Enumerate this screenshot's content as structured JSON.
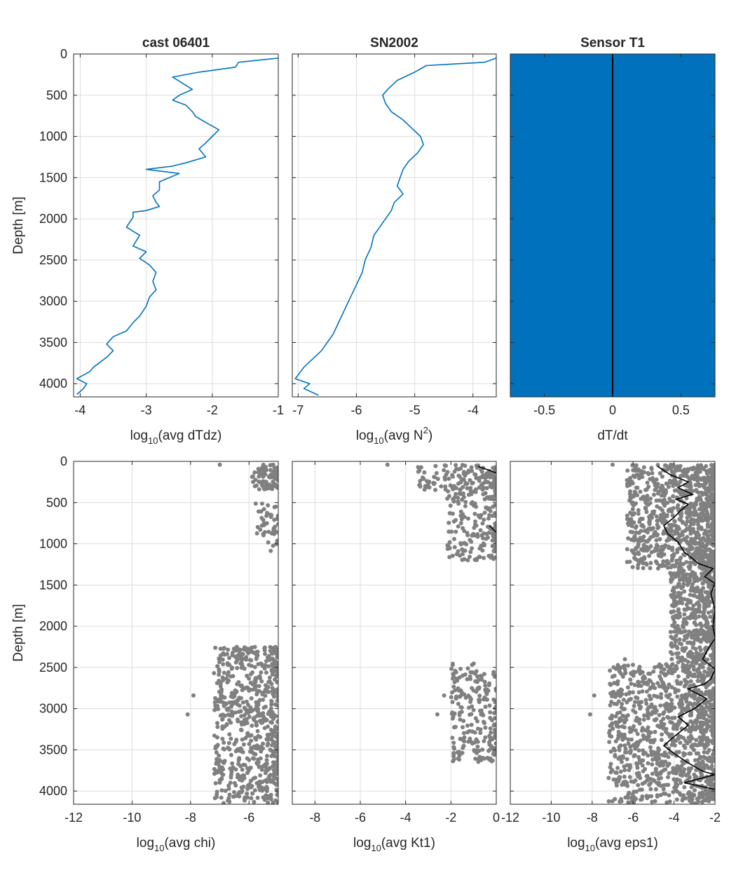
{
  "figure": {
    "panels": [
      {
        "id": "p1",
        "title": "cast 06401",
        "xlabel": {
          "pre": "log",
          "sub": "10",
          "post": "(avg dTdz)"
        },
        "ylabel": "Depth [m]",
        "xticks": [
          "-4",
          "-3",
          "-2",
          "-1"
        ],
        "yticks": [
          "0",
          "500",
          "1000",
          "1500",
          "2000",
          "2500",
          "3000",
          "3500",
          "4000"
        ]
      },
      {
        "id": "p2",
        "title": "SN2002",
        "xlabel": {
          "pre": "log",
          "sub": "10",
          "post": "(avg N",
          "sup": "2",
          "post2": ")"
        },
        "xticks": [
          "-7",
          "-6",
          "-5",
          "-4"
        ]
      },
      {
        "id": "p3",
        "title": "Sensor T1",
        "xlabel": {
          "pre": "dT/dt"
        },
        "xticks": [
          "-0.5",
          "0",
          "0.5"
        ]
      },
      {
        "id": "p4",
        "xlabel": {
          "pre": "log",
          "sub": "10",
          "post": "(avg chi)"
        },
        "ylabel": "Depth [m]",
        "xticks": [
          "-12",
          "-10",
          "-8",
          "-6"
        ],
        "yticks": [
          "0",
          "500",
          "1000",
          "1500",
          "2000",
          "2500",
          "3000",
          "3500",
          "4000"
        ]
      },
      {
        "id": "p5",
        "xlabel": {
          "pre": "log",
          "sub": "10",
          "post": "(avg Kt1)"
        },
        "xticks": [
          "-8",
          "-6",
          "-4",
          "-2",
          "0"
        ]
      },
      {
        "id": "p6",
        "xlabel": {
          "pre": "log",
          "sub": "10",
          "post": "(avg eps1)"
        },
        "xticks": [
          "-12",
          "-10",
          "-8",
          "-6",
          "-4",
          "-2"
        ]
      }
    ]
  },
  "colors": {
    "line_blue": "#0072bd",
    "fill_blue": "#0072bd",
    "scatter_gray": "#808080",
    "median_black": "#000000",
    "grid": "#dcdcdc",
    "axis": "#262626"
  },
  "chart_data": [
    {
      "type": "line",
      "panel": "p1",
      "orientation": "profile (x vs depth)",
      "xlim": [
        -4.1,
        -1.0
      ],
      "ylim": [
        0,
        4160
      ],
      "y_reversed": true,
      "grid": true,
      "series": [
        {
          "x": [
            -1.0,
            -1.6,
            -1.65,
            -2.2,
            -2.6,
            -2.4,
            -2.3,
            -2.5,
            -2.6,
            -2.4,
            -2.3,
            -2.25,
            -2.1,
            -1.9,
            -2.0,
            -2.1,
            -2.2,
            -2.1,
            -2.4,
            -2.6,
            -3.0,
            -2.5,
            -2.8,
            -2.8,
            -2.9,
            -2.85,
            -2.8,
            -3.0,
            -3.2,
            -3.2,
            -3.3,
            -3.1,
            -3.2,
            -3.0,
            -3.1,
            -2.95,
            -2.85,
            -2.9,
            -2.85,
            -2.95,
            -3.0,
            -3.1,
            -3.2,
            -3.3,
            -3.5,
            -3.6,
            -3.5,
            -3.6,
            -3.8,
            -3.85,
            -4.05,
            -3.9,
            -3.95,
            -4.05
          ],
          "y": [
            50,
            100,
            160,
            220,
            280,
            380,
            430,
            500,
            560,
            620,
            700,
            760,
            830,
            920,
            1000,
            1080,
            1150,
            1250,
            1320,
            1360,
            1400,
            1450,
            1550,
            1650,
            1720,
            1800,
            1850,
            1900,
            1920,
            1980,
            2100,
            2200,
            2330,
            2400,
            2480,
            2560,
            2650,
            2760,
            2860,
            2950,
            3060,
            3180,
            3260,
            3360,
            3430,
            3520,
            3600,
            3680,
            3800,
            3850,
            3940,
            4000,
            4060,
            4130
          ]
        }
      ]
    },
    {
      "type": "line",
      "panel": "p2",
      "orientation": "profile (x vs depth)",
      "xlim": [
        -7.1,
        -3.6
      ],
      "ylim": [
        0,
        4160
      ],
      "y_reversed": true,
      "grid": true,
      "series": [
        {
          "x": [
            -3.6,
            -3.8,
            -4.8,
            -5.0,
            -5.3,
            -5.45,
            -5.55,
            -5.5,
            -5.4,
            -5.2,
            -5.05,
            -4.9,
            -4.85,
            -4.95,
            -5.1,
            -5.2,
            -5.25,
            -5.3,
            -5.2,
            -5.35,
            -5.4,
            -5.5,
            -5.6,
            -5.7,
            -5.75,
            -5.85,
            -5.9,
            -6.0,
            -6.1,
            -6.2,
            -6.3,
            -6.4,
            -6.5,
            -6.6,
            -6.75,
            -6.9,
            -7.05,
            -6.8,
            -6.9,
            -6.65
          ],
          "y": [
            50,
            100,
            140,
            220,
            320,
            420,
            500,
            600,
            700,
            800,
            900,
            1000,
            1100,
            1200,
            1300,
            1400,
            1500,
            1600,
            1700,
            1800,
            1900,
            2000,
            2100,
            2200,
            2350,
            2500,
            2650,
            2800,
            2950,
            3100,
            3250,
            3400,
            3500,
            3600,
            3700,
            3800,
            3940,
            4000,
            4060,
            4140
          ]
        }
      ]
    },
    {
      "type": "area",
      "panel": "p3",
      "xlim": [
        -0.75,
        0.75
      ],
      "ylim": [
        0,
        4160
      ],
      "y_reversed": true,
      "note_series": [
        {
          "x": [
            0,
            0
          ],
          "y": [
            0,
            4160
          ]
        }
      ]
    },
    {
      "type": "scatter",
      "panel": "p4",
      "xlim": [
        -12,
        -5
      ],
      "ylim": [
        0,
        4160
      ],
      "y_reversed": true,
      "grid": true,
      "clusters": [
        {
          "x_range": [
            -5.9,
            -5.0
          ],
          "y_range": [
            40,
            340
          ],
          "count": 90
        },
        {
          "x_range": [
            -5.8,
            -5.0
          ],
          "y_range": [
            500,
            900
          ],
          "count": 40
        },
        {
          "x_range": [
            -5.5,
            -5.0
          ],
          "y_range": [
            950,
            1100
          ],
          "count": 6
        },
        {
          "x_range": [
            -7.2,
            -5.0
          ],
          "y_range": [
            2250,
            4150
          ],
          "count": 700
        }
      ],
      "outliers": [
        {
          "x": -7.0,
          "y": 40
        },
        {
          "x": -8.1,
          "y": 3070
        },
        {
          "x": -7.9,
          "y": 2840
        },
        {
          "x": -6.4,
          "y": 2400
        }
      ]
    },
    {
      "type": "scatter",
      "panel": "p5",
      "xlim": [
        -9,
        0
      ],
      "ylim": [
        0,
        4160
      ],
      "y_reversed": true,
      "grid": true,
      "clusters": [
        {
          "x_range": [
            -3.5,
            0
          ],
          "y_range": [
            40,
            360
          ],
          "count": 150
        },
        {
          "x_range": [
            -2.2,
            0
          ],
          "y_range": [
            360,
            1200
          ],
          "count": 180
        },
        {
          "x_range": [
            -2.0,
            0
          ],
          "y_range": [
            2450,
            3650
          ],
          "count": 220
        }
      ],
      "outliers": [
        {
          "x": -4.8,
          "y": 40
        },
        {
          "x": -2.3,
          "y": 2840
        },
        {
          "x": -2.6,
          "y": 3070
        }
      ],
      "median_series": [
        {
          "x": [
            -0.8,
            -0.4,
            0
          ],
          "y": [
            60,
            100,
            140
          ]
        },
        {
          "x": [
            -0.3,
            -0.15,
            0
          ],
          "y": [
            780,
            820,
            860
          ]
        }
      ]
    },
    {
      "type": "scatter",
      "panel": "p6",
      "xlim": [
        -12,
        -2
      ],
      "ylim": [
        0,
        4160
      ],
      "y_reversed": true,
      "grid": true,
      "clusters": [
        {
          "x_range": [
            -6.3,
            -2.0
          ],
          "y_range": [
            40,
            1300
          ],
          "count": 900
        },
        {
          "x_range": [
            -4.2,
            -2.0
          ],
          "y_range": [
            1300,
            2450
          ],
          "count": 500
        },
        {
          "x_range": [
            -7.2,
            -2.0
          ],
          "y_range": [
            2450,
            4150
          ],
          "count": 1100
        }
      ],
      "outliers": [
        {
          "x": -7.0,
          "y": 40
        },
        {
          "x": -8.1,
          "y": 3070
        },
        {
          "x": -7.9,
          "y": 2840
        },
        {
          "x": -6.4,
          "y": 2400
        }
      ],
      "median_series": [
        {
          "x": [
            -4.8,
            -4.2,
            -3.3,
            -3.8,
            -3.1,
            -3.9,
            -3.3,
            -3.7,
            -4.0,
            -4.5,
            -4.3,
            -3.8,
            -3.5,
            -2.8,
            -2.1,
            -2.5,
            -2.0,
            -2.2,
            -2.0,
            -2.1,
            -2.0,
            -2.3,
            -2.6,
            -2.0,
            -2.2,
            -2.5,
            -3.3,
            -2.4,
            -3.0,
            -3.8,
            -3.3,
            -4.0,
            -4.5,
            -3.9,
            -3.3,
            -2.6,
            -2.0,
            -3.5,
            -2.0
          ],
          "y": [
            60,
            160,
            250,
            320,
            400,
            460,
            520,
            600,
            680,
            780,
            880,
            980,
            1100,
            1240,
            1300,
            1400,
            1480,
            1600,
            1800,
            2000,
            2150,
            2260,
            2400,
            2520,
            2640,
            2700,
            2760,
            2880,
            3000,
            3100,
            3200,
            3340,
            3450,
            3560,
            3660,
            3760,
            3800,
            3900,
            3980
          ]
        }
      ]
    }
  ]
}
